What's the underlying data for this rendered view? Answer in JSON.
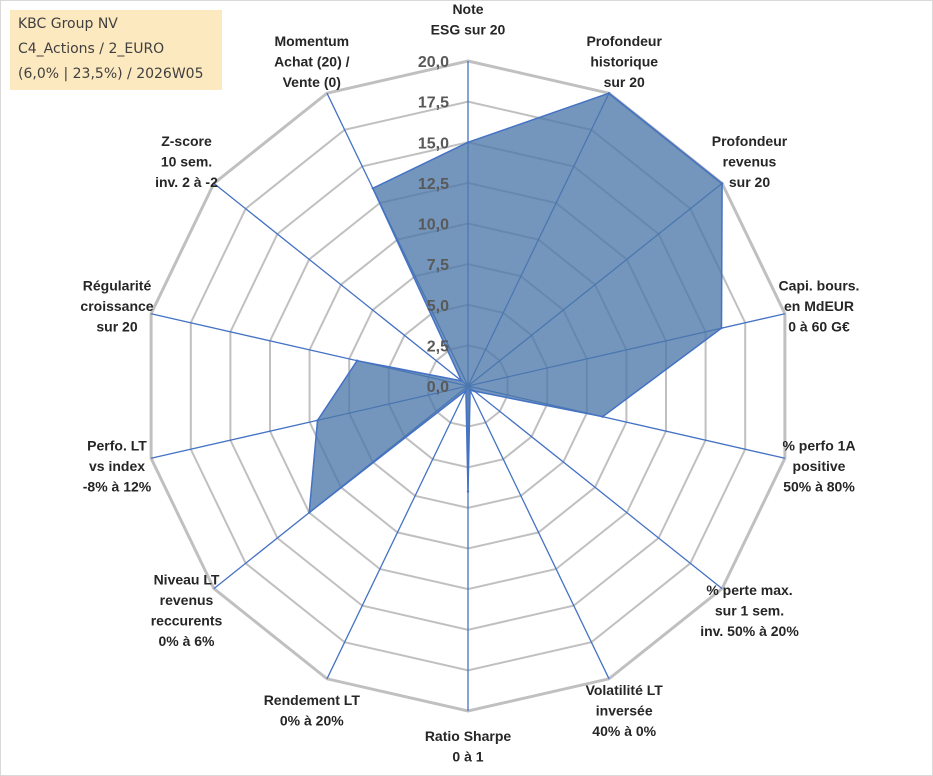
{
  "title_box": {
    "line1": "KBC Group NV",
    "line2": "C4_Actions / 2_EURO",
    "line3": "(6,0% | 23,5%) / 2026W05"
  },
  "chart_data": {
    "type": "radar",
    "rmin": 0,
    "rmax": 20,
    "ticks": [
      "0,0",
      "2,5",
      "5,0",
      "7,5",
      "10,0",
      "12,5",
      "15,0",
      "17,5",
      "20,0"
    ],
    "categories": [
      [
        "Note",
        "ESG sur 20"
      ],
      [
        "Profondeur",
        "historique",
        "sur 20"
      ],
      [
        "Profondeur",
        "revenus",
        "sur 20"
      ],
      [
        "Capi. bours.",
        "en MdEUR",
        "0 à 60 G€"
      ],
      [
        "% perfo 1A",
        "positive",
        "50% à 80%"
      ],
      [
        "% perte max.",
        "sur 1 sem.",
        "inv. 50% à 20%"
      ],
      [
        "Volatilité LT",
        "inversée",
        "40% à 0%"
      ],
      [
        "Ratio Sharpe",
        "0 à 1"
      ],
      [
        "Rendement LT",
        "0% à 20%"
      ],
      [
        "Niveau LT",
        "revenus",
        "reccurents",
        "0% à 6%"
      ],
      [
        "Perfo. LT",
        "vs index",
        "-8% à 12%"
      ],
      [
        "Régularité",
        "croissance",
        "sur 20"
      ],
      [
        "Z-score",
        "10 sem.",
        "inv. 2 à -2"
      ],
      [
        "Momentum",
        "Achat (20) /",
        "Vente (0)"
      ]
    ],
    "values": [
      15,
      20,
      20,
      16,
      8.5,
      0.5,
      0.3,
      6.5,
      0.3,
      12.5,
      9.5,
      7,
      0.5,
      13.5
    ],
    "grid": true,
    "legend": "none",
    "colors": {
      "fill": "#4d79aa",
      "stroke": "#4472c4",
      "grid": "#c0c0c0",
      "spoke": "#4472c4"
    }
  }
}
